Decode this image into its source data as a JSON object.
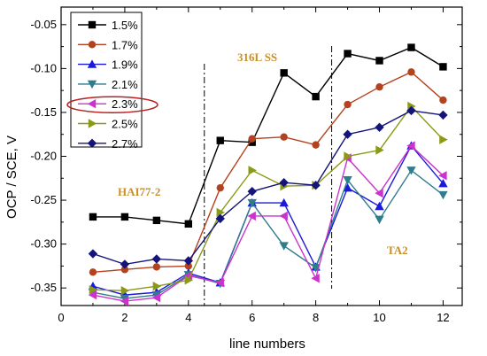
{
  "chart_data": {
    "type": "line",
    "xlabel": "line numbers",
    "ylabel": "OCP / SCE, V",
    "xlim": [
      0,
      12.6
    ],
    "ylim": [
      -0.37,
      -0.03
    ],
    "x_ticks": [
      0,
      2,
      4,
      6,
      8,
      10,
      12
    ],
    "y_ticks": [
      -0.35,
      -0.3,
      -0.25,
      -0.2,
      -0.15,
      -0.1,
      -0.05
    ],
    "y_tick_labels": [
      "-0.35",
      "-0.30",
      "-0.25",
      "-0.20",
      "-0.15",
      "-0.10",
      "-0.05"
    ],
    "x_tick_labels": [
      "0",
      "2",
      "4",
      "6",
      "8",
      "10",
      "12"
    ],
    "x": [
      1,
      2,
      3,
      4,
      5,
      6,
      7,
      8,
      9,
      10,
      11,
      12
    ],
    "series": [
      {
        "name": "1.5%",
        "color": "#000000",
        "marker": "square",
        "values": [
          -0.269,
          -0.269,
          -0.273,
          -0.277,
          -0.182,
          -0.184,
          -0.105,
          -0.132,
          -0.083,
          -0.091,
          -0.076,
          -0.098
        ]
      },
      {
        "name": "1.7%",
        "color": "#b5421e",
        "marker": "circle",
        "values": [
          -0.332,
          -0.329,
          -0.326,
          -0.325,
          -0.236,
          -0.18,
          -0.178,
          -0.187,
          -0.141,
          -0.121,
          -0.104,
          -0.136
        ]
      },
      {
        "name": "1.9%",
        "color": "#1a1adb",
        "marker": "triangle-up",
        "values": [
          -0.348,
          -0.358,
          -0.355,
          -0.333,
          -0.344,
          -0.253,
          -0.253,
          -0.326,
          -0.236,
          -0.257,
          -0.188,
          -0.231
        ]
      },
      {
        "name": "2.1%",
        "color": "#2f7c8c",
        "marker": "triangle-down",
        "values": [
          -0.355,
          -0.362,
          -0.358,
          -0.335,
          -0.345,
          -0.253,
          -0.302,
          -0.327,
          -0.227,
          -0.272,
          -0.216,
          -0.244
        ]
      },
      {
        "name": "2.3%",
        "color": "#cc33cc",
        "marker": "triangle-left",
        "values": [
          -0.358,
          -0.365,
          -0.361,
          -0.336,
          -0.344,
          -0.268,
          -0.268,
          -0.339,
          -0.202,
          -0.242,
          -0.188,
          -0.222
        ]
      },
      {
        "name": "2.5%",
        "color": "#8a9a14",
        "marker": "triangle-right",
        "values": [
          -0.352,
          -0.353,
          -0.348,
          -0.341,
          -0.264,
          -0.216,
          -0.234,
          -0.233,
          -0.2,
          -0.193,
          -0.143,
          -0.181
        ]
      },
      {
        "name": "2.7%",
        "color": "#14147a",
        "marker": "diamond",
        "values": [
          -0.311,
          -0.323,
          -0.317,
          -0.319,
          -0.271,
          -0.24,
          -0.23,
          -0.233,
          -0.175,
          -0.167,
          -0.148,
          -0.153
        ]
      }
    ],
    "divider_lines_x": [
      4.5,
      8.5
    ],
    "annotations": [
      {
        "text": "HAI77-2"
      },
      {
        "text": "316L SS"
      },
      {
        "text": "TA2"
      }
    ],
    "highlighted_legend_entry": "2.3%",
    "highlight_color": "#b82020",
    "annotation_color": "#c8902a",
    "legend_position": "top-left"
  }
}
